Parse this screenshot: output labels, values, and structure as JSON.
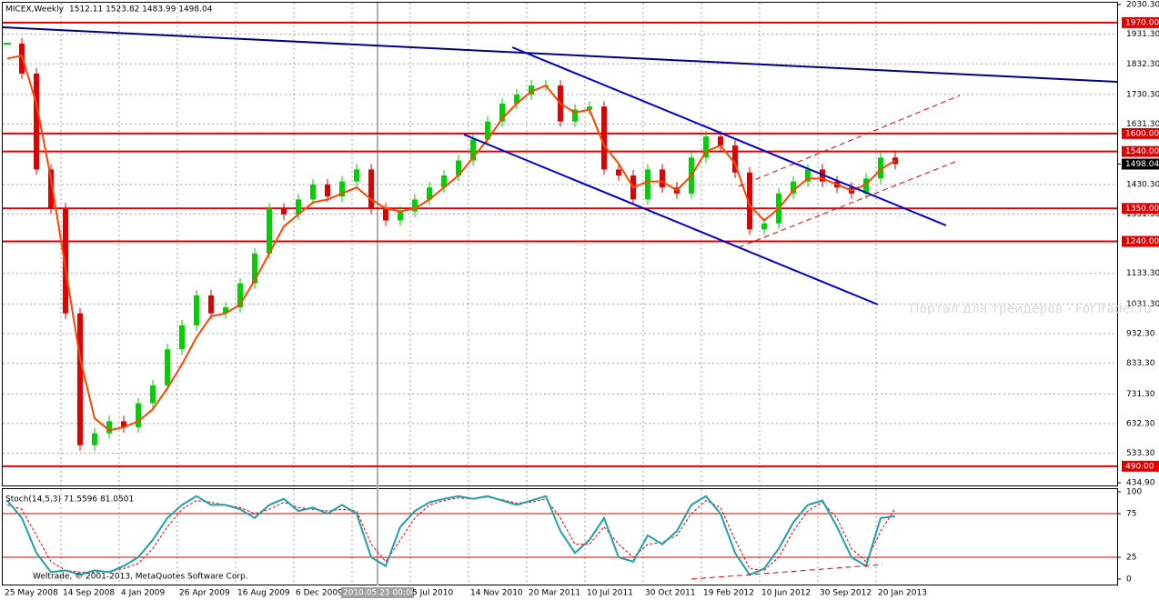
{
  "chart_data": {
    "type": "candlestick",
    "title": "MICEX,Weekly",
    "ohlc_label": "1512.11 1523.82 1483.99 1498.04",
    "watermark": "Портал для трейдеров - ForTrader.ru",
    "copyright": "Weltrade, © 2001-2013, MetaQuotes Software Corp.",
    "grid": true,
    "up_color": "#00d000",
    "down_color": "#e00000",
    "dates": [
      "25 May 2008",
      "14 Sep 2008",
      "4 Jan 2009",
      "26 Apr 2009",
      "16 Aug 2009",
      "6 Dec 2009",
      "2010.05.23 00:00",
      "5 Jul 2010",
      "14 Nov 2010",
      "20 Mar 2011",
      "10 Jul 2011",
      "30 Oct 2011",
      "19 Feb 2012",
      "10 Jun 2012",
      "30 Sep 2012",
      "20 Jan 2013"
    ],
    "ylim": [
      434.9,
      2030.3
    ],
    "yticks": [
      {
        "value": 2030.3,
        "label": "2030.30"
      },
      {
        "value": 1931.3,
        "label": "1931.30"
      },
      {
        "value": 1832.3,
        "label": "1832.30"
      },
      {
        "value": 1730.3,
        "label": "1730.30"
      },
      {
        "value": 1631.3,
        "label": "1631.30"
      },
      {
        "value": 1430.3,
        "label": "1430.30"
      },
      {
        "value": 1331.3,
        "label": "1331.30"
      },
      {
        "value": 1133.3,
        "label": "1133.30"
      },
      {
        "value": 1031.3,
        "label": "1031.30"
      },
      {
        "value": 932.3,
        "label": "932.30"
      },
      {
        "value": 833.3,
        "label": "833.30"
      },
      {
        "value": 731.3,
        "label": "731.30"
      },
      {
        "value": 632.3,
        "label": "632.30"
      },
      {
        "value": 533.3,
        "label": "533.30"
      },
      {
        "value": 434.9,
        "label": "434.90"
      }
    ],
    "levels": [
      {
        "value": 1970,
        "label": "1970.00"
      },
      {
        "value": 1600,
        "label": "1600.00"
      },
      {
        "value": 1540,
        "label": "1540.00"
      },
      {
        "value": 1350,
        "label": "1350.00"
      },
      {
        "value": 1240,
        "label": "1240.00"
      },
      {
        "value": 490,
        "label": "490.00"
      }
    ],
    "level_color": "#e00000",
    "current": {
      "value": 1498.04,
      "label": "1498.04"
    },
    "close": [
      1900,
      1800,
      1480,
      1350,
      1000,
      560,
      600,
      640,
      620,
      700,
      760,
      880,
      960,
      1060,
      1000,
      1020,
      1100,
      1200,
      1350,
      1330,
      1380,
      1430,
      1390,
      1440,
      1480,
      1350,
      1310,
      1340,
      1380,
      1420,
      1460,
      1510,
      1580,
      1640,
      1700,
      1730,
      1760,
      1760,
      1640,
      1680,
      1690,
      1480,
      1460,
      1380,
      1480,
      1420,
      1400,
      1520,
      1590,
      1560,
      1470,
      1280,
      1300,
      1400,
      1440,
      1480,
      1440,
      1420,
      1400,
      1450,
      1520,
      1498.04
    ],
    "ma": {
      "color": "#ff4500",
      "values": [
        1850,
        1860,
        1700,
        1450,
        1150,
        850,
        650,
        610,
        620,
        640,
        680,
        750,
        830,
        920,
        990,
        1000,
        1030,
        1110,
        1200,
        1290,
        1330,
        1370,
        1380,
        1400,
        1420,
        1380,
        1350,
        1340,
        1350,
        1380,
        1420,
        1460,
        1520,
        1580,
        1650,
        1700,
        1740,
        1760,
        1700,
        1670,
        1680,
        1560,
        1500,
        1420,
        1440,
        1440,
        1410,
        1460,
        1540,
        1560,
        1500,
        1360,
        1310,
        1350,
        1410,
        1450,
        1450,
        1430,
        1410,
        1430,
        1480,
        1510
      ]
    },
    "stoch": {
      "title": "Stoch(14,5,3) 71.5596 81.0501",
      "ylim": [
        0,
        100
      ],
      "yticks": [
        100,
        75,
        25,
        0
      ],
      "levels": [
        75,
        25
      ],
      "main": {
        "color": "#20a0a8",
        "values": [
          90,
          70,
          30,
          8,
          10,
          5,
          10,
          8,
          15,
          25,
          45,
          70,
          85,
          95,
          85,
          85,
          80,
          70,
          85,
          92,
          78,
          82,
          75,
          85,
          75,
          25,
          15,
          60,
          78,
          88,
          92,
          95,
          92,
          95,
          90,
          85,
          90,
          95,
          55,
          30,
          45,
          70,
          25,
          20,
          50,
          40,
          55,
          85,
          95,
          75,
          30,
          5,
          12,
          35,
          65,
          85,
          90,
          60,
          25,
          15,
          70,
          72
        ]
      },
      "signal": {
        "color": "#e00000",
        "values": [
          85,
          80,
          50,
          20,
          10,
          8,
          8,
          9,
          12,
          18,
          35,
          60,
          80,
          90,
          88,
          85,
          82,
          75,
          80,
          88,
          82,
          80,
          78,
          80,
          78,
          40,
          20,
          45,
          70,
          85,
          90,
          93,
          92,
          94,
          91,
          87,
          88,
          92,
          70,
          40,
          40,
          60,
          40,
          25,
          40,
          42,
          50,
          75,
          90,
          82,
          45,
          12,
          10,
          25,
          55,
          78,
          88,
          70,
          35,
          20,
          55,
          81
        ]
      }
    }
  }
}
